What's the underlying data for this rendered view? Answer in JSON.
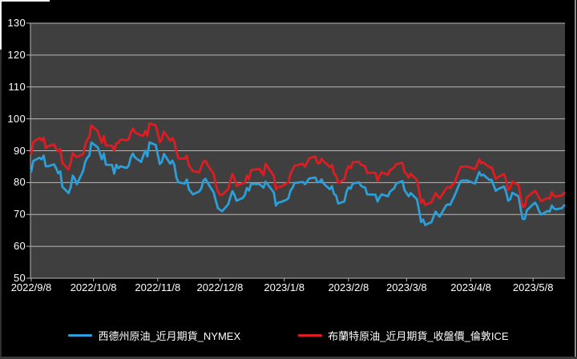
{
  "window": {
    "background": "#000000",
    "border_accent": "#f2f2f2",
    "border_gray": "#8a8a8a"
  },
  "chart_data": {
    "type": "line",
    "title": "",
    "xlabel": "",
    "ylabel": "",
    "ylim": [
      50,
      130
    ],
    "y_ticks": [
      130,
      120,
      110,
      100,
      90,
      80,
      70,
      60,
      50
    ],
    "x_ticks": [
      "2022/9/8",
      "2022/10/8",
      "2022/11/8",
      "2022/12/8",
      "2023/1/8",
      "2023/2/8",
      "2023/3/8",
      "2023/4/8",
      "2023/5/8"
    ],
    "grid": true,
    "legend_position": "bottom",
    "plot_background": "#3f3f3f",
    "grid_color": "#b9b9b9",
    "axis_text_color": "#ffffff",
    "dates": [
      "2022/9/8",
      "2022/9/9",
      "2022/9/12",
      "2022/9/13",
      "2022/9/14",
      "2022/9/15",
      "2022/9/16",
      "2022/9/19",
      "2022/9/20",
      "2022/9/21",
      "2022/9/22",
      "2022/9/23",
      "2022/9/26",
      "2022/9/27",
      "2022/9/28",
      "2022/9/29",
      "2022/9/30",
      "2022/10/3",
      "2022/10/4",
      "2022/10/5",
      "2022/10/6",
      "2022/10/7",
      "2022/10/10",
      "2022/10/11",
      "2022/10/12",
      "2022/10/13",
      "2022/10/14",
      "2022/10/17",
      "2022/10/18",
      "2022/10/19",
      "2022/10/20",
      "2022/10/21",
      "2022/10/24",
      "2022/10/25",
      "2022/10/26",
      "2022/10/27",
      "2022/10/28",
      "2022/10/31",
      "2022/11/1",
      "2022/11/2",
      "2022/11/3",
      "2022/11/4",
      "2022/11/7",
      "2022/11/8",
      "2022/11/9",
      "2022/11/10",
      "2022/11/11",
      "2022/11/14",
      "2022/11/15",
      "2022/11/16",
      "2022/11/17",
      "2022/11/18",
      "2022/11/21",
      "2022/11/22",
      "2022/11/23",
      "2022/11/25",
      "2022/11/28",
      "2022/11/29",
      "2022/11/30",
      "2022/12/1",
      "2022/12/2",
      "2022/12/5",
      "2022/12/6",
      "2022/12/7",
      "2022/12/8",
      "2022/12/9",
      "2022/12/12",
      "2022/12/13",
      "2022/12/14",
      "2022/12/15",
      "2022/12/16",
      "2022/12/19",
      "2022/12/20",
      "2022/12/21",
      "2022/12/22",
      "2022/12/23",
      "2022/12/27",
      "2022/12/28",
      "2022/12/29",
      "2022/12/30",
      "2023/1/3",
      "2023/1/4",
      "2023/1/5",
      "2023/1/6",
      "2023/1/9",
      "2023/1/10",
      "2023/1/11",
      "2023/1/12",
      "2023/1/13",
      "2023/1/17",
      "2023/1/18",
      "2023/1/19",
      "2023/1/20",
      "2023/1/23",
      "2023/1/24",
      "2023/1/25",
      "2023/1/26",
      "2023/1/27",
      "2023/1/30",
      "2023/1/31",
      "2023/2/1",
      "2023/2/2",
      "2023/2/3",
      "2023/2/6",
      "2023/2/7",
      "2023/2/8",
      "2023/2/9",
      "2023/2/10",
      "2023/2/13",
      "2023/2/14",
      "2023/2/15",
      "2023/2/16",
      "2023/2/17",
      "2023/2/21",
      "2023/2/22",
      "2023/2/23",
      "2023/2/24",
      "2023/2/27",
      "2023/2/28",
      "2023/3/1",
      "2023/3/2",
      "2023/3/3",
      "2023/3/6",
      "2023/3/7",
      "2023/3/8",
      "2023/3/9",
      "2023/3/10",
      "2023/3/13",
      "2023/3/14",
      "2023/3/15",
      "2023/3/16",
      "2023/3/17",
      "2023/3/20",
      "2023/3/21",
      "2023/3/22",
      "2023/3/23",
      "2023/3/24",
      "2023/3/27",
      "2023/3/28",
      "2023/3/29",
      "2023/3/30",
      "2023/3/31",
      "2023/4/3",
      "2023/4/4",
      "2023/4/5",
      "2023/4/6",
      "2023/4/10",
      "2023/4/11",
      "2023/4/12",
      "2023/4/13",
      "2023/4/14",
      "2023/4/17",
      "2023/4/18",
      "2023/4/19",
      "2023/4/20",
      "2023/4/21",
      "2023/4/24",
      "2023/4/25",
      "2023/4/26",
      "2023/4/27",
      "2023/4/28",
      "2023/5/1",
      "2023/5/2",
      "2023/5/3",
      "2023/5/4",
      "2023/5/5",
      "2023/5/8",
      "2023/5/9",
      "2023/5/10",
      "2023/5/11",
      "2023/5/12",
      "2023/5/15",
      "2023/5/16",
      "2023/5/17",
      "2023/5/18",
      "2023/5/19",
      "2023/5/22",
      "2023/5/23"
    ],
    "series": [
      {
        "name": "西德州原油_近月期貨_NYMEX",
        "color": "#2d9fd8",
        "values": [
          83.5,
          86.8,
          87.8,
          87.3,
          88.5,
          85.1,
          85.1,
          85.7,
          84.5,
          82.9,
          83.5,
          78.7,
          76.7,
          78.5,
          82.2,
          81.2,
          79.5,
          83.6,
          86.5,
          87.8,
          88.5,
          92.6,
          91.1,
          89.4,
          87.3,
          89.1,
          85.6,
          85.5,
          82.8,
          85.6,
          84.5,
          85.1,
          84.6,
          85.3,
          87.9,
          89.1,
          87.9,
          86.5,
          88.4,
          90.0,
          88.2,
          92.6,
          91.8,
          88.9,
          85.8,
          86.5,
          89.0,
          85.9,
          86.9,
          85.6,
          81.6,
          80.1,
          79.7,
          81.0,
          77.9,
          76.3,
          77.2,
          78.2,
          80.6,
          81.2,
          80.0,
          76.9,
          74.3,
          72.0,
          71.5,
          71.0,
          73.2,
          75.4,
          77.3,
          76.1,
          74.3,
          75.2,
          76.1,
          78.3,
          77.5,
          79.6,
          79.5,
          79.0,
          78.4,
          80.3,
          76.9,
          72.8,
          73.7,
          73.8,
          74.6,
          75.1,
          77.4,
          78.4,
          79.9,
          80.2,
          79.5,
          80.3,
          81.3,
          81.6,
          80.1,
          80.2,
          81.0,
          79.7,
          77.9,
          78.9,
          76.4,
          75.9,
          73.4,
          74.1,
          77.1,
          78.5,
          78.1,
          79.7,
          80.1,
          79.1,
          78.6,
          78.5,
          76.3,
          76.2,
          74.1,
          75.4,
          76.3,
          75.7,
          77.1,
          77.7,
          78.2,
          79.7,
          80.5,
          77.6,
          76.7,
          75.7,
          76.7,
          74.8,
          71.3,
          67.6,
          68.4,
          66.7,
          67.6,
          69.3,
          70.9,
          70.0,
          69.3,
          72.8,
          73.2,
          73.0,
          74.4,
          75.7,
          80.4,
          80.7,
          80.6,
          80.7,
          79.7,
          81.5,
          83.3,
          82.2,
          82.5,
          80.8,
          80.9,
          79.2,
          77.4,
          77.9,
          78.8,
          77.1,
          74.3,
          74.8,
          76.8,
          75.7,
          71.7,
          68.6,
          68.6,
          71.3,
          73.2,
          73.7,
          72.6,
          70.9,
          70.0,
          71.1,
          70.9,
          72.8,
          71.9,
          71.6,
          72.0,
          72.9
        ]
      },
      {
        "name": "布蘭特原油_近月期貨_收盤價_倫敦ICE",
        "color": "#de1d22",
        "values": [
          89.2,
          92.8,
          94.0,
          93.2,
          94.1,
          90.8,
          91.4,
          92.0,
          90.6,
          89.8,
          90.5,
          86.2,
          84.1,
          86.3,
          89.3,
          88.5,
          88.0,
          88.9,
          91.8,
          93.4,
          94.4,
          97.9,
          96.2,
          94.3,
          92.5,
          94.6,
          91.6,
          91.6,
          90.0,
          92.4,
          92.4,
          93.5,
          93.3,
          93.5,
          95.7,
          97.0,
          95.8,
          94.8,
          94.7,
          96.2,
          94.7,
          98.6,
          97.9,
          95.4,
          92.7,
          93.7,
          96.0,
          93.1,
          93.9,
          92.9,
          89.8,
          87.6,
          87.5,
          88.4,
          85.4,
          83.6,
          83.2,
          85.0,
          86.6,
          86.9,
          85.6,
          82.7,
          79.4,
          77.2,
          76.2,
          76.1,
          78.0,
          80.7,
          82.7,
          81.2,
          79.0,
          79.8,
          80.0,
          82.2,
          81.0,
          83.9,
          84.3,
          83.3,
          82.3,
          85.9,
          82.1,
          77.8,
          78.7,
          78.6,
          79.7,
          80.1,
          82.7,
          84.0,
          85.3,
          85.9,
          85.0,
          86.2,
          87.6,
          88.2,
          86.1,
          86.1,
          87.5,
          86.7,
          84.9,
          85.5,
          82.8,
          82.2,
          79.9,
          81.0,
          83.7,
          85.1,
          84.5,
          86.4,
          86.6,
          85.6,
          85.4,
          85.1,
          83.0,
          83.1,
          80.6,
          82.2,
          83.2,
          82.5,
          83.9,
          84.3,
          84.8,
          85.8,
          86.2,
          83.3,
          82.7,
          81.6,
          82.8,
          80.8,
          77.5,
          73.7,
          74.7,
          73.0,
          73.8,
          75.3,
          76.7,
          75.9,
          75.0,
          78.1,
          78.7,
          78.3,
          79.3,
          79.8,
          84.9,
          84.9,
          85.0,
          85.1,
          84.2,
          85.6,
          87.3,
          86.1,
          86.3,
          84.8,
          84.8,
          83.1,
          81.1,
          81.7,
          82.7,
          80.8,
          77.7,
          78.4,
          80.3,
          79.3,
          75.3,
          72.3,
          72.5,
          75.3,
          77.0,
          77.4,
          76.4,
          75.0,
          74.2,
          75.2,
          74.9,
          77.0,
          75.9,
          75.6,
          76.0,
          76.8
        ]
      }
    ]
  }
}
